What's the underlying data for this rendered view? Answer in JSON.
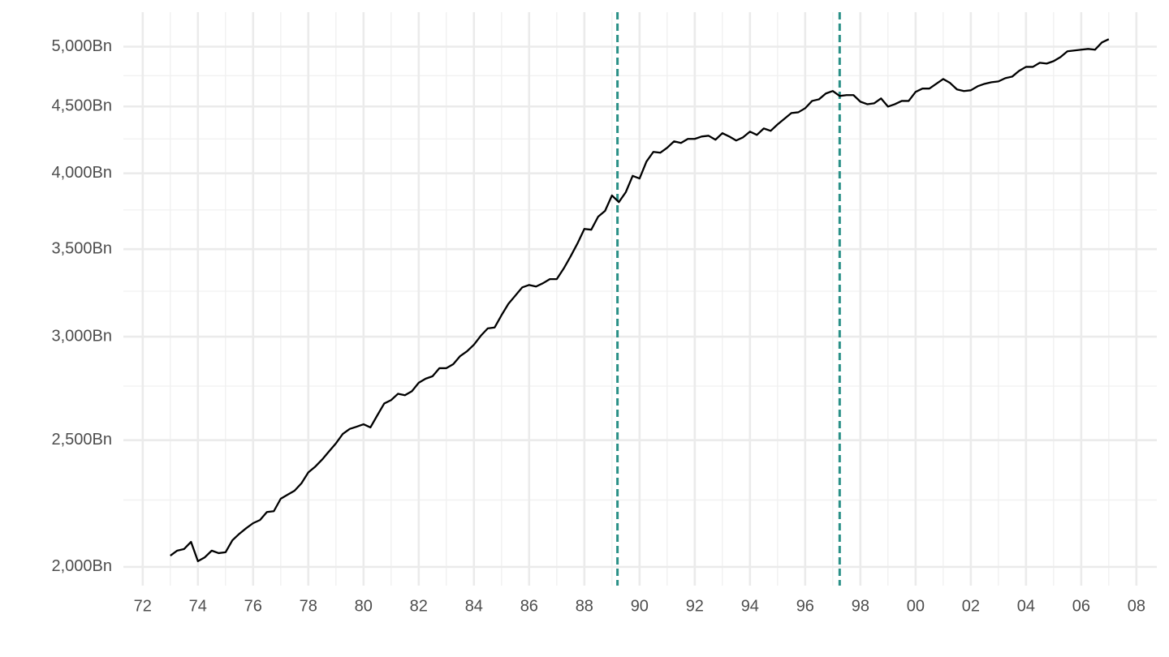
{
  "chart_data": {
    "type": "line",
    "x": [
      1973,
      1973.25,
      1973.5,
      1973.75,
      1974,
      1974.25,
      1974.5,
      1974.75,
      1975,
      1975.25,
      1975.5,
      1975.75,
      1976,
      1976.25,
      1976.5,
      1976.75,
      1977,
      1977.25,
      1977.5,
      1977.75,
      1978,
      1978.25,
      1978.5,
      1978.75,
      1979,
      1979.25,
      1979.5,
      1979.75,
      1980,
      1980.25,
      1980.5,
      1980.75,
      1981,
      1981.25,
      1981.5,
      1981.75,
      1982,
      1982.25,
      1982.5,
      1982.75,
      1983,
      1983.25,
      1983.5,
      1983.75,
      1984,
      1984.25,
      1984.5,
      1984.75,
      1985,
      1985.25,
      1985.5,
      1985.75,
      1986,
      1986.25,
      1986.5,
      1986.75,
      1987,
      1987.25,
      1987.5,
      1987.75,
      1988,
      1988.25,
      1988.5,
      1988.75,
      1989,
      1989.25,
      1989.5,
      1989.75,
      1990,
      1990.25,
      1990.5,
      1990.75,
      1991,
      1991.25,
      1991.5,
      1991.75,
      1992,
      1992.25,
      1992.5,
      1992.75,
      1993,
      1993.25,
      1993.5,
      1993.75,
      1994,
      1994.25,
      1994.5,
      1994.75,
      1995,
      1995.25,
      1995.5,
      1995.75,
      1996,
      1996.25,
      1996.5,
      1996.75,
      1997,
      1997.25,
      1997.5,
      1997.75,
      1998,
      1998.25,
      1998.5,
      1998.75,
      1999,
      1999.25,
      1999.5,
      1999.75,
      2000,
      2000.25,
      2000.5,
      2000.75,
      2001,
      2001.25,
      2001.5,
      2001.75,
      2002,
      2002.25,
      2002.5,
      2002.75,
      2003,
      2003.25,
      2003.5,
      2003.75,
      2004,
      2004.25,
      2004.5,
      2004.75,
      2005,
      2005.25,
      2005.5,
      2005.75,
      2006,
      2006.25,
      2006.5,
      2006.75,
      2007
    ],
    "series": [
      {
        "color": "#000000",
        "values": [
          2040,
          2058,
          2064,
          2090,
          2020,
          2034,
          2058,
          2049,
          2052,
          2096,
          2120,
          2141,
          2160,
          2172,
          2203,
          2206,
          2255,
          2271,
          2287,
          2317,
          2362,
          2386,
          2416,
          2451,
          2486,
          2528,
          2550,
          2560,
          2571,
          2557,
          2612,
          2667,
          2683,
          2713,
          2706,
          2725,
          2766,
          2786,
          2798,
          2838,
          2838,
          2858,
          2899,
          2924,
          2958,
          3005,
          3044,
          3049,
          3116,
          3179,
          3225,
          3272,
          3286,
          3277,
          3296,
          3320,
          3320,
          3382,
          3455,
          3535,
          3627,
          3622,
          3706,
          3744,
          3847,
          3802,
          3869,
          3982,
          3964,
          4084,
          4154,
          4148,
          4184,
          4232,
          4220,
          4250,
          4250,
          4268,
          4274,
          4244,
          4293,
          4268,
          4238,
          4262,
          4305,
          4280,
          4329,
          4311,
          4360,
          4404,
          4448,
          4454,
          4486,
          4544,
          4557,
          4604,
          4624,
          4584,
          4591,
          4591,
          4538,
          4518,
          4525,
          4564,
          4499,
          4518,
          4544,
          4544,
          4617,
          4644,
          4644,
          4683,
          4723,
          4690,
          4637,
          4624,
          4630,
          4663,
          4683,
          4696,
          4703,
          4730,
          4743,
          4791,
          4825,
          4825,
          4860,
          4853,
          4874,
          4909,
          4959,
          4966,
          4973,
          4980,
          4973,
          5037,
          5066
        ]
      }
    ],
    "xlim": [
      1971.3,
      2008.74
    ],
    "xticks": [
      {
        "value": 1972,
        "label": "72"
      },
      {
        "value": 1974,
        "label": "74"
      },
      {
        "value": 1976,
        "label": "76"
      },
      {
        "value": 1978,
        "label": "78"
      },
      {
        "value": 1980,
        "label": "80"
      },
      {
        "value": 1982,
        "label": "82"
      },
      {
        "value": 1984,
        "label": "84"
      },
      {
        "value": 1986,
        "label": "86"
      },
      {
        "value": 1988,
        "label": "88"
      },
      {
        "value": 1990,
        "label": "90"
      },
      {
        "value": 1992,
        "label": "92"
      },
      {
        "value": 1994,
        "label": "94"
      },
      {
        "value": 1996,
        "label": "96"
      },
      {
        "value": 1998,
        "label": "98"
      },
      {
        "value": 2000,
        "label": "00"
      },
      {
        "value": 2002,
        "label": "02"
      },
      {
        "value": 2004,
        "label": "04"
      },
      {
        "value": 2006,
        "label": "06"
      },
      {
        "value": 2008,
        "label": "08"
      }
    ],
    "ylim": [
      1935,
      5313
    ],
    "log_y": true,
    "yticks": [
      {
        "value": 2000,
        "label": "2,000Bn"
      },
      {
        "value": 2500,
        "label": "2,500Bn"
      },
      {
        "value": 3000,
        "label": "3,000Bn"
      },
      {
        "value": 3500,
        "label": "3,500Bn"
      },
      {
        "value": 4000,
        "label": "4,000Bn"
      },
      {
        "value": 4500,
        "label": "4,500Bn"
      },
      {
        "value": 5000,
        "label": "5,000Bn"
      }
    ],
    "yminor": [
      2250,
      2750,
      3250,
      3750,
      4250,
      4750
    ],
    "xminor": [
      1973,
      1975,
      1977,
      1979,
      1981,
      1983,
      1985,
      1987,
      1989,
      1991,
      1993,
      1995,
      1997,
      1999,
      2001,
      2003,
      2005,
      2007
    ],
    "vlines": [
      1989.2,
      1997.25
    ],
    "vline_color": "#2a9087",
    "grid": true
  }
}
